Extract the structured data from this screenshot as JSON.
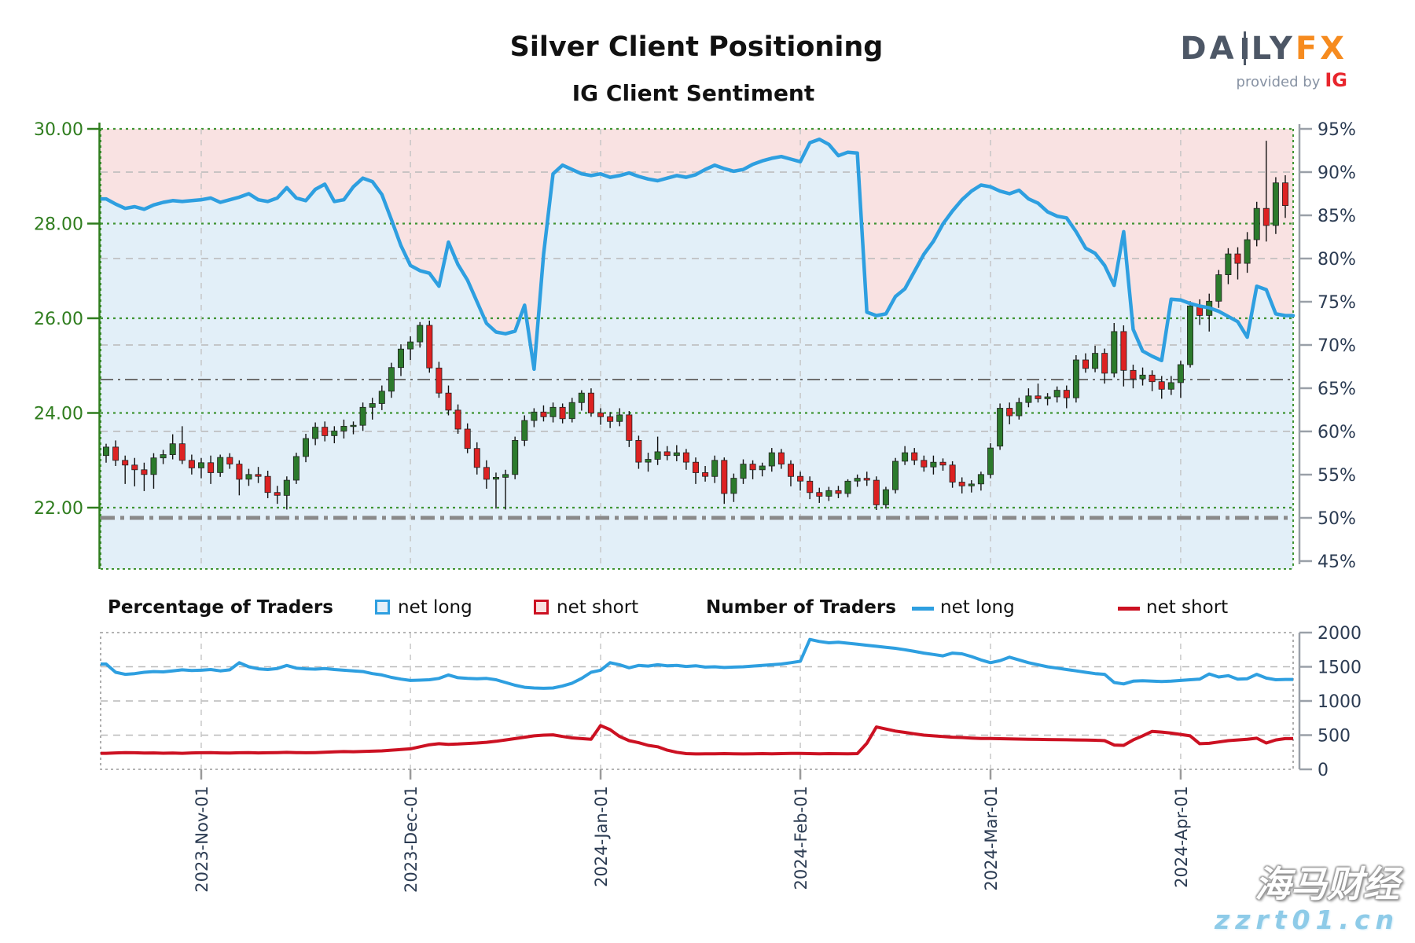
{
  "title": "Silver Client Positioning",
  "subtitle": "IG Client Sentiment",
  "logo": {
    "daily_prefix": "DA",
    "daily_suffix": "LY",
    "fx": "FX",
    "provided_by": "provided by",
    "ig": "IG"
  },
  "legend": {
    "group1_label": "Percentage of Traders",
    "group1_net_long": "net long",
    "group1_net_short": "net short",
    "group2_label": "Number of Traders",
    "group2_net_long": "net long",
    "group2_net_short": "net short"
  },
  "watermark": {
    "line1": "海马财经",
    "line2": "zzrt01.cn"
  },
  "chart_data": {
    "type": "candlestick+line",
    "title": "Silver Client Positioning",
    "subtitle": "IG Client Sentiment",
    "price_axis": {
      "side": "left",
      "tick_values": [
        30,
        28,
        26,
        24,
        22
      ],
      "tick_labels": [
        "30.00",
        "28.00",
        "26.00",
        "24.00",
        "22.00"
      ],
      "range_top": 30.0,
      "range_bottom": 20.7
    },
    "sentiment_axis": {
      "side": "right",
      "unit": "%",
      "tick_values": [
        95,
        90,
        85,
        80,
        75,
        70,
        65,
        60,
        55,
        50,
        45
      ],
      "tick_labels": [
        "95%",
        "90%",
        "85%",
        "80%",
        "75%",
        "70%",
        "65%",
        "60%",
        "55%",
        "50%",
        "45%"
      ],
      "gridline_values": [
        90,
        80,
        70,
        60
      ]
    },
    "x_axis": {
      "month_tick_labels": [
        "2023-Nov-01",
        "2023-Dec-01",
        "2024-Jan-01",
        "2024-Feb-01",
        "2024-Mar-01",
        "2024-Apr-01"
      ],
      "month_tick_indices": [
        10,
        32,
        52,
        73,
        93,
        113
      ]
    },
    "reference_lines": [
      {
        "axis": "sentiment",
        "value": 66,
        "style": "dash-dot-thin"
      },
      {
        "axis": "sentiment",
        "value": 50,
        "style": "dash-dot-thick"
      }
    ],
    "sentiment_net_long_pct": [
      86.9,
      86.3,
      85.8,
      86.0,
      85.7,
      86.2,
      86.5,
      86.7,
      86.6,
      86.7,
      86.8,
      87.0,
      86.5,
      86.8,
      87.1,
      87.5,
      86.8,
      86.6,
      87.0,
      88.2,
      87.0,
      86.7,
      88.0,
      88.6,
      86.6,
      86.8,
      88.3,
      89.3,
      88.9,
      87.4,
      84.5,
      81.5,
      79.2,
      78.6,
      78.3,
      76.8,
      81.9,
      79.3,
      77.5,
      75.0,
      72.5,
      71.5,
      71.3,
      71.6,
      74.6,
      67.2,
      80.5,
      89.8,
      90.8,
      90.3,
      89.8,
      89.6,
      89.8,
      89.4,
      89.6,
      89.9,
      89.5,
      89.2,
      89.0,
      89.3,
      89.6,
      89.4,
      89.7,
      90.3,
      90.8,
      90.4,
      90.1,
      90.3,
      90.9,
      91.3,
      91.6,
      91.8,
      91.5,
      91.2,
      93.4,
      93.8,
      93.2,
      91.9,
      92.3,
      92.2,
      73.8,
      73.4,
      73.6,
      75.6,
      76.5,
      78.5,
      80.5,
      82.0,
      84.0,
      85.5,
      86.8,
      87.8,
      88.5,
      88.3,
      87.8,
      87.5,
      87.9,
      86.9,
      86.4,
      85.4,
      84.9,
      84.7,
      83.1,
      81.2,
      80.6,
      79.2,
      76.9,
      83.1,
      71.8,
      69.3,
      68.7,
      68.2,
      75.3,
      75.2,
      74.8,
      74.5,
      74.3,
      73.9,
      73.3,
      72.7,
      70.9,
      76.8,
      76.4,
      73.6,
      73.4
    ],
    "candles_ohlc": [
      [
        23.1,
        23.35,
        22.95,
        23.28
      ],
      [
        23.28,
        23.42,
        22.88,
        23.0
      ],
      [
        23.0,
        23.1,
        22.5,
        22.9
      ],
      [
        22.9,
        23.05,
        22.45,
        22.8
      ],
      [
        22.8,
        22.95,
        22.35,
        22.7
      ],
      [
        22.7,
        23.15,
        22.4,
        23.05
      ],
      [
        23.05,
        23.22,
        22.92,
        23.12
      ],
      [
        23.12,
        23.55,
        23.02,
        23.35
      ],
      [
        23.35,
        23.72,
        22.92,
        23.0
      ],
      [
        23.0,
        23.12,
        22.7,
        22.84
      ],
      [
        22.84,
        23.05,
        22.62,
        22.95
      ],
      [
        22.95,
        23.1,
        22.5,
        22.74
      ],
      [
        22.74,
        23.12,
        22.65,
        23.06
      ],
      [
        23.06,
        23.15,
        22.82,
        22.92
      ],
      [
        22.92,
        23.0,
        22.26,
        22.6
      ],
      [
        22.6,
        22.82,
        22.46,
        22.7
      ],
      [
        22.7,
        22.86,
        22.52,
        22.66
      ],
      [
        22.66,
        22.78,
        22.2,
        22.32
      ],
      [
        22.32,
        22.46,
        22.08,
        22.26
      ],
      [
        22.26,
        22.66,
        21.96,
        22.58
      ],
      [
        22.58,
        23.16,
        22.5,
        23.08
      ],
      [
        23.08,
        23.56,
        22.96,
        23.46
      ],
      [
        23.46,
        23.8,
        23.32,
        23.7
      ],
      [
        23.7,
        23.82,
        23.4,
        23.52
      ],
      [
        23.52,
        23.72,
        23.36,
        23.62
      ],
      [
        23.62,
        23.86,
        23.46,
        23.72
      ],
      [
        23.72,
        23.82,
        23.55,
        23.74
      ],
      [
        23.74,
        24.22,
        23.62,
        24.12
      ],
      [
        24.12,
        24.32,
        23.86,
        24.2
      ],
      [
        24.2,
        24.58,
        24.06,
        24.46
      ],
      [
        24.46,
        25.06,
        24.32,
        24.96
      ],
      [
        24.96,
        25.45,
        24.78,
        25.35
      ],
      [
        25.35,
        25.62,
        25.12,
        25.5
      ],
      [
        25.5,
        25.92,
        25.38,
        25.85
      ],
      [
        25.85,
        25.95,
        24.85,
        24.95
      ],
      [
        24.95,
        25.08,
        24.32,
        24.42
      ],
      [
        24.42,
        24.58,
        23.95,
        24.06
      ],
      [
        24.06,
        24.18,
        23.56,
        23.66
      ],
      [
        23.66,
        23.78,
        23.15,
        23.25
      ],
      [
        23.25,
        23.38,
        22.7,
        22.85
      ],
      [
        22.85,
        23.0,
        22.4,
        22.6
      ],
      [
        22.6,
        22.74,
        21.98,
        22.64
      ],
      [
        22.64,
        22.8,
        21.96,
        22.7
      ],
      [
        22.7,
        23.5,
        22.6,
        23.42
      ],
      [
        23.42,
        23.95,
        23.3,
        23.84
      ],
      [
        23.84,
        24.1,
        23.7,
        24.02
      ],
      [
        24.02,
        24.16,
        23.82,
        23.92
      ],
      [
        23.92,
        24.22,
        23.8,
        24.12
      ],
      [
        24.12,
        24.2,
        23.78,
        23.88
      ],
      [
        23.88,
        24.32,
        23.8,
        24.22
      ],
      [
        24.22,
        24.48,
        24.05,
        24.42
      ],
      [
        24.42,
        24.52,
        23.92,
        24.0
      ],
      [
        24.0,
        24.1,
        23.75,
        23.92
      ],
      [
        23.92,
        24.02,
        23.68,
        23.82
      ],
      [
        23.82,
        24.1,
        23.72,
        23.96
      ],
      [
        23.96,
        24.04,
        23.28,
        23.42
      ],
      [
        23.42,
        23.52,
        22.82,
        22.96
      ],
      [
        22.96,
        23.16,
        22.76,
        23.02
      ],
      [
        23.02,
        23.5,
        22.9,
        23.18
      ],
      [
        23.18,
        23.3,
        23.0,
        23.1
      ],
      [
        23.1,
        23.32,
        22.98,
        23.16
      ],
      [
        23.16,
        23.24,
        22.8,
        22.96
      ],
      [
        22.96,
        23.06,
        22.5,
        22.74
      ],
      [
        22.74,
        22.88,
        22.55,
        22.66
      ],
      [
        22.66,
        23.1,
        22.52,
        23.0
      ],
      [
        23.0,
        23.06,
        22.08,
        22.3
      ],
      [
        22.3,
        22.72,
        22.12,
        22.62
      ],
      [
        22.62,
        23.02,
        22.5,
        22.92
      ],
      [
        22.92,
        23.0,
        22.6,
        22.8
      ],
      [
        22.8,
        22.95,
        22.66,
        22.88
      ],
      [
        22.88,
        23.26,
        22.76,
        23.16
      ],
      [
        23.16,
        23.24,
        22.82,
        22.92
      ],
      [
        22.92,
        23.0,
        22.45,
        22.66
      ],
      [
        22.66,
        22.76,
        22.36,
        22.56
      ],
      [
        22.56,
        22.66,
        22.18,
        22.32
      ],
      [
        22.32,
        22.42,
        22.1,
        22.24
      ],
      [
        22.24,
        22.44,
        22.14,
        22.36
      ],
      [
        22.36,
        22.46,
        22.2,
        22.3
      ],
      [
        22.3,
        22.6,
        22.22,
        22.56
      ],
      [
        22.56,
        22.7,
        22.44,
        22.62
      ],
      [
        22.62,
        22.76,
        22.46,
        22.58
      ],
      [
        22.58,
        22.66,
        21.95,
        22.06
      ],
      [
        22.06,
        22.44,
        21.98,
        22.38
      ],
      [
        22.38,
        23.05,
        22.3,
        22.98
      ],
      [
        22.98,
        23.3,
        22.9,
        23.16
      ],
      [
        23.16,
        23.26,
        22.9,
        23.0
      ],
      [
        23.0,
        23.1,
        22.76,
        22.86
      ],
      [
        22.86,
        23.1,
        22.7,
        22.96
      ],
      [
        22.96,
        23.04,
        22.78,
        22.9
      ],
      [
        22.9,
        22.98,
        22.42,
        22.54
      ],
      [
        22.54,
        22.64,
        22.3,
        22.46
      ],
      [
        22.46,
        22.58,
        22.32,
        22.5
      ],
      [
        22.5,
        22.76,
        22.36,
        22.7
      ],
      [
        22.7,
        23.36,
        22.62,
        23.26
      ],
      [
        23.3,
        24.2,
        23.22,
        24.1
      ],
      [
        24.1,
        24.22,
        23.76,
        23.94
      ],
      [
        23.94,
        24.32,
        23.86,
        24.22
      ],
      [
        24.22,
        24.52,
        24.12,
        24.36
      ],
      [
        24.36,
        24.62,
        24.22,
        24.3
      ],
      [
        24.3,
        24.42,
        24.16,
        24.34
      ],
      [
        24.34,
        24.56,
        24.22,
        24.48
      ],
      [
        24.48,
        24.58,
        24.1,
        24.32
      ],
      [
        24.32,
        25.22,
        24.22,
        25.12
      ],
      [
        25.12,
        25.26,
        24.85,
        24.94
      ],
      [
        24.94,
        25.42,
        24.86,
        25.26
      ],
      [
        25.26,
        25.36,
        24.62,
        24.84
      ],
      [
        24.84,
        25.9,
        24.75,
        25.72
      ],
      [
        25.72,
        25.85,
        24.56,
        24.9
      ],
      [
        24.9,
        25.02,
        24.52,
        24.72
      ],
      [
        24.72,
        24.96,
        24.58,
        24.8
      ],
      [
        24.8,
        24.9,
        24.46,
        24.66
      ],
      [
        24.66,
        24.78,
        24.3,
        24.5
      ],
      [
        24.5,
        24.78,
        24.38,
        24.64
      ],
      [
        24.64,
        25.1,
        24.32,
        25.02
      ],
      [
        25.02,
        26.36,
        24.96,
        26.26
      ],
      [
        26.26,
        26.4,
        25.86,
        26.06
      ],
      [
        26.06,
        26.52,
        25.72,
        26.36
      ],
      [
        26.36,
        27.02,
        26.22,
        26.92
      ],
      [
        26.92,
        27.48,
        26.72,
        27.36
      ],
      [
        27.36,
        27.5,
        26.82,
        27.16
      ],
      [
        27.16,
        27.82,
        26.96,
        27.66
      ],
      [
        27.66,
        28.46,
        27.52,
        28.32
      ],
      [
        28.32,
        29.75,
        27.62,
        27.96
      ],
      [
        27.96,
        28.98,
        27.78,
        28.86
      ],
      [
        28.86,
        29.02,
        28.12,
        28.38
      ]
    ],
    "traders_chart": {
      "ylim": [
        0,
        2000
      ],
      "tick_values": [
        2000,
        1500,
        1000,
        500,
        0
      ],
      "tick_labels": [
        "2000",
        "1500",
        "1000",
        "500",
        "0"
      ],
      "gridline_values": [
        1500,
        1000,
        500
      ],
      "net_long": [
        1540,
        1420,
        1390,
        1400,
        1420,
        1430,
        1425,
        1440,
        1455,
        1445,
        1450,
        1460,
        1440,
        1455,
        1560,
        1500,
        1470,
        1460,
        1475,
        1520,
        1480,
        1470,
        1465,
        1475,
        1460,
        1450,
        1440,
        1430,
        1400,
        1380,
        1345,
        1320,
        1300,
        1305,
        1310,
        1330,
        1380,
        1340,
        1330,
        1325,
        1330,
        1310,
        1270,
        1230,
        1200,
        1190,
        1185,
        1190,
        1220,
        1260,
        1330,
        1420,
        1450,
        1560,
        1530,
        1485,
        1520,
        1510,
        1530,
        1515,
        1520,
        1505,
        1515,
        1495,
        1500,
        1490,
        1495,
        1500,
        1510,
        1520,
        1530,
        1540,
        1560,
        1580,
        1900,
        1870,
        1850,
        1860,
        1845,
        1830,
        1815,
        1800,
        1785,
        1770,
        1750,
        1725,
        1700,
        1680,
        1660,
        1700,
        1690,
        1650,
        1600,
        1560,
        1590,
        1640,
        1600,
        1560,
        1530,
        1500,
        1480,
        1460,
        1440,
        1420,
        1400,
        1390,
        1270,
        1250,
        1290,
        1295,
        1290,
        1285,
        1290,
        1300,
        1310,
        1320,
        1395,
        1350,
        1370,
        1320,
        1325,
        1390,
        1335,
        1310,
        1315
      ],
      "net_short": [
        235,
        240,
        245,
        242,
        238,
        240,
        236,
        238,
        235,
        240,
        242,
        245,
        240,
        238,
        242,
        245,
        240,
        242,
        245,
        248,
        245,
        242,
        245,
        250,
        255,
        260,
        258,
        262,
        265,
        270,
        280,
        290,
        300,
        330,
        360,
        375,
        365,
        370,
        378,
        385,
        395,
        410,
        430,
        450,
        470,
        490,
        500,
        505,
        480,
        460,
        450,
        440,
        640,
        580,
        480,
        420,
        390,
        350,
        330,
        280,
        250,
        230,
        225,
        228,
        226,
        230,
        228,
        225,
        227,
        230,
        228,
        230,
        232,
        232,
        230,
        228,
        230,
        229,
        228,
        230,
        380,
        620,
        590,
        560,
        540,
        520,
        500,
        490,
        480,
        470,
        465,
        458,
        452,
        452,
        448,
        445,
        442,
        440,
        438,
        436,
        434,
        432,
        430,
        428,
        425,
        420,
        355,
        350,
        430,
        490,
        555,
        545,
        530,
        510,
        490,
        375,
        380,
        400,
        420,
        430,
        440,
        455,
        385,
        430,
        450
      ]
    },
    "colors": {
      "sentiment_line": "#2e9fe0",
      "fill_above_line": "#f9e2e2",
      "fill_below_line": "#e2eff8",
      "candle_up": "#2c7a2c",
      "candle_down": "#dd2222",
      "wick": "#111111",
      "price_axis_green": "#2f7d1e",
      "price_grid_green": "#3f9433",
      "pct_grid_gray": "#b9b9b9",
      "month_grid_gray": "#c4c4c4",
      "axis_label_navy": "#2b3b52",
      "traders_long_line": "#2e9fe0",
      "traders_short_line": "#cc1122",
      "ref_line_gray": "#8a8a8a"
    }
  }
}
